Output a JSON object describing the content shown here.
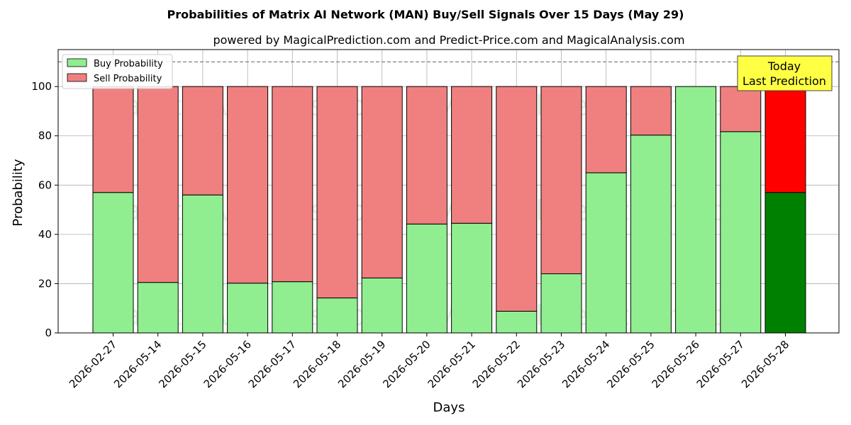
{
  "chart_data": {
    "type": "bar",
    "stacked": true,
    "title": "Probabilities of Matrix AI Network (MAN) Buy/Sell Signals Over 15 Days (May 29)",
    "subtitle": "powered by MagicalPrediction.com and Predict-Price.com and MagicalAnalysis.com",
    "xlabel": "Days",
    "ylabel": "Probability",
    "ylim": [
      0,
      115
    ],
    "yticks": [
      0,
      20,
      40,
      60,
      80,
      100
    ],
    "reference_line": 110,
    "grid": true,
    "legend_position": "top-left",
    "categories": [
      "2026-02-27",
      "2026-05-14",
      "2026-05-15",
      "2026-05-16",
      "2026-05-17",
      "2026-05-18",
      "2026-05-19",
      "2026-05-20",
      "2026-05-21",
      "2026-05-22",
      "2026-05-23",
      "2026-05-24",
      "2026-05-25",
      "2026-05-26",
      "2026-05-27",
      "2026-05-28"
    ],
    "series": [
      {
        "name": "Buy Probability",
        "color": "#90ee90",
        "values": [
          57,
          20.5,
          56,
          20.2,
          20.8,
          14.2,
          22.3,
          44.2,
          44.5,
          8.8,
          24,
          65,
          80.3,
          100,
          81.7,
          57
        ]
      },
      {
        "name": "Sell Probability",
        "color": "#f08080",
        "values": [
          43,
          79.5,
          44,
          79.8,
          79.2,
          85.8,
          77.7,
          55.8,
          55.5,
          91.2,
          76,
          35,
          19.7,
          0,
          18.3,
          43
        ]
      }
    ],
    "highlight": {
      "index": 15,
      "buy_color": "#008000",
      "sell_color": "#ff0000"
    },
    "annotation": {
      "lines": [
        "Today",
        "Last Prediction"
      ],
      "background": "#ffff44"
    },
    "watermarks": [
      "MagicalAnalysis.com",
      "MagicalPrediction.com"
    ]
  }
}
